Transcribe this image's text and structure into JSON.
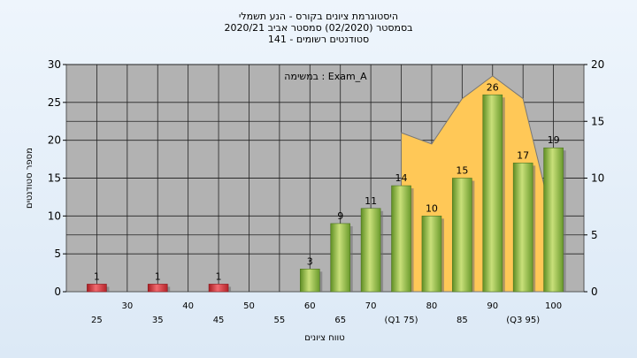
{
  "title_lines": [
    "היסטוגרמת ציונים בקורס - הנע תשמלי",
    "2020/21 בסמסטר  (02/2020)  סמסטר אביב",
    "סטודנטים רשומים - 141"
  ],
  "annotation": "במשימה : Exam_A",
  "colors": {
    "plot_bg": "#b2b2b2",
    "area": "#ffc857",
    "bar_red": "#d9333a",
    "bar_green": "#8bb83c"
  },
  "chart_data": {
    "type": "bar",
    "xlabel": "טווח ציונים",
    "ylabel": "מספר סטודנטים",
    "ylim": [
      0,
      30
    ],
    "y2lim": [
      0,
      20
    ],
    "yticks": [
      0,
      5,
      10,
      15,
      20,
      25,
      30
    ],
    "y2ticks": [
      0,
      5,
      10,
      15,
      20
    ],
    "grid": true,
    "categories": [
      25,
      30,
      35,
      40,
      45,
      50,
      55,
      60,
      65,
      70,
      75,
      80,
      85,
      90,
      95,
      100
    ],
    "category_labels": [
      "25",
      "30",
      "35",
      "40",
      "45",
      "50",
      "55",
      "60",
      "65",
      "70",
      "(Q1 75)",
      "80",
      "85",
      "90",
      "(Q3 95)",
      "100"
    ],
    "bars": [
      {
        "x": 25,
        "value": 1,
        "color": "red"
      },
      {
        "x": 35,
        "value": 1,
        "color": "red"
      },
      {
        "x": 45,
        "value": 1,
        "color": "red"
      },
      {
        "x": 60,
        "value": 3,
        "color": "green"
      },
      {
        "x": 65,
        "value": 9,
        "color": "green"
      },
      {
        "x": 70,
        "value": 11,
        "color": "green"
      },
      {
        "x": 75,
        "value": 14,
        "color": "green"
      },
      {
        "x": 80,
        "value": 10,
        "color": "green"
      },
      {
        "x": 85,
        "value": 15,
        "color": "green"
      },
      {
        "x": 90,
        "value": 26,
        "color": "green"
      },
      {
        "x": 95,
        "value": 17,
        "color": "green"
      },
      {
        "x": 100,
        "value": 19,
        "color": "green"
      }
    ],
    "area": {
      "x": [
        75,
        80,
        85,
        90,
        95,
        100
      ],
      "y": [
        14,
        13,
        17,
        19,
        17,
        6
      ]
    }
  }
}
